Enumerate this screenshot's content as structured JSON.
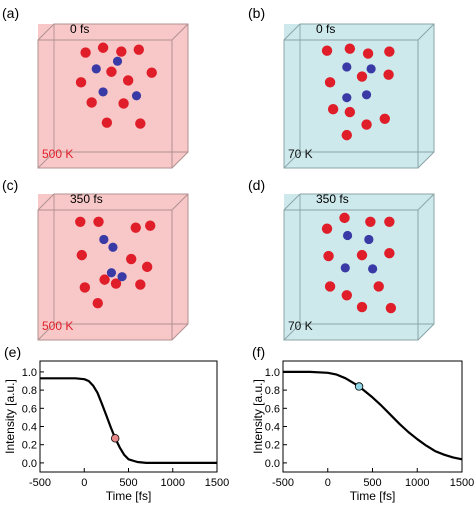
{
  "colors": {
    "warm_face": "#f8c8c8",
    "cool_face": "#cde9ec",
    "warm_edge": "#b09090",
    "cool_edge": "#8aa4a8",
    "red_atom": "#e01e2a",
    "blue_atom": "#3a3aa6",
    "warm_label": "#e0202a",
    "cool_label": "#111111",
    "marker_warm": "#e88888",
    "marker_cool": "#8fd6e6"
  },
  "panels": [
    {
      "label": "(a)",
      "time": "0 fs",
      "temperature": "500 K",
      "theme": "warm",
      "atoms": {
        "red": [
          [
            0.1,
            0.11
          ],
          [
            0.33,
            0.06
          ],
          [
            0.57,
            0.1
          ],
          [
            0.8,
            0.08
          ],
          [
            0.04,
            0.42
          ],
          [
            0.44,
            0.31
          ],
          [
            0.66,
            0.4
          ],
          [
            0.97,
            0.32
          ],
          [
            0.18,
            0.63
          ],
          [
            0.6,
            0.64
          ],
          [
            0.38,
            0.84
          ],
          [
            0.82,
            0.85
          ]
        ],
        "blue": [
          [
            0.24,
            0.28
          ],
          [
            0.52,
            0.2
          ],
          [
            0.33,
            0.52
          ],
          [
            0.77,
            0.56
          ]
        ]
      }
    },
    {
      "label": "(b)",
      "time": "0 fs",
      "temperature": "70 K",
      "theme": "cool",
      "atoms": {
        "red": [
          [
            0.04,
            0.09
          ],
          [
            0.34,
            0.07
          ],
          [
            0.58,
            0.12
          ],
          [
            0.86,
            0.1
          ],
          [
            0.08,
            0.42
          ],
          [
            0.5,
            0.36
          ],
          [
            0.85,
            0.34
          ],
          [
            0.12,
            0.7
          ],
          [
            0.34,
            0.73
          ],
          [
            0.56,
            0.86
          ],
          [
            0.8,
            0.8
          ],
          [
            0.3,
            0.97
          ]
        ],
        "blue": [
          [
            0.3,
            0.26
          ],
          [
            0.62,
            0.28
          ],
          [
            0.3,
            0.58
          ],
          [
            0.56,
            0.55
          ]
        ]
      }
    },
    {
      "label": "(c)",
      "time": "350 fs",
      "temperature": "500 K",
      "theme": "warm",
      "atoms": {
        "red": [
          [
            0.03,
            0.1
          ],
          [
            0.27,
            0.1
          ],
          [
            0.76,
            0.16
          ],
          [
            0.95,
            0.14
          ],
          [
            0.05,
            0.44
          ],
          [
            0.7,
            0.48
          ],
          [
            0.91,
            0.56
          ],
          [
            0.09,
            0.77
          ],
          [
            0.35,
            0.69
          ],
          [
            0.5,
            0.73
          ],
          [
            0.82,
            0.74
          ],
          [
            0.26,
            0.93
          ]
        ],
        "blue": [
          [
            0.34,
            0.28
          ],
          [
            0.46,
            0.36
          ],
          [
            0.44,
            0.62
          ],
          [
            0.58,
            0.66
          ]
        ]
      }
    },
    {
      "label": "(d)",
      "time": "350 fs",
      "temperature": "70 K",
      "theme": "cool",
      "atoms": {
        "red": [
          [
            0.04,
            0.17
          ],
          [
            0.27,
            0.06
          ],
          [
            0.61,
            0.1
          ],
          [
            0.86,
            0.1
          ],
          [
            0.06,
            0.45
          ],
          [
            0.5,
            0.44
          ],
          [
            0.86,
            0.42
          ],
          [
            0.08,
            0.76
          ],
          [
            0.3,
            0.85
          ],
          [
            0.72,
            0.76
          ],
          [
            0.5,
            0.97
          ],
          [
            0.88,
            0.98
          ]
        ],
        "blue": [
          [
            0.31,
            0.24
          ],
          [
            0.59,
            0.28
          ],
          [
            0.28,
            0.57
          ],
          [
            0.64,
            0.58
          ]
        ]
      }
    }
  ],
  "plots": [
    {
      "label": "(e)",
      "ylabel": "Intensity [a.u.]",
      "xlabel": "Time [fs]",
      "xlim": [
        -500,
        1500
      ],
      "ylim": [
        -0.1,
        1.12
      ],
      "xticks": [
        "-500",
        "0",
        "500",
        "1000",
        "1500"
      ],
      "xtick_values": [
        -500,
        0,
        500,
        1000,
        1500
      ],
      "yticks": [
        "0.0",
        "0.2",
        "0.4",
        "0.6",
        "0.8",
        "1.0"
      ],
      "ytick_values": [
        0,
        0.2,
        0.4,
        0.6,
        0.8,
        1.0
      ],
      "marker": {
        "x": 350,
        "y": 0.27,
        "color_key": "marker_warm"
      }
    },
    {
      "label": "(f)",
      "ylabel": "Intensity [a.u.]",
      "xlabel": "Time [fs]",
      "xlim": [
        -500,
        1500
      ],
      "ylim": [
        -0.1,
        1.12
      ],
      "xticks": [
        "-500",
        "0",
        "500",
        "1000",
        "1500"
      ],
      "xtick_values": [
        -500,
        0,
        500,
        1000,
        1500
      ],
      "yticks": [
        "0.0",
        "0.2",
        "0.4",
        "0.6",
        "0.8",
        "1.0"
      ],
      "ytick_values": [
        0,
        0.2,
        0.4,
        0.6,
        0.8,
        1.0
      ],
      "marker": {
        "x": 350,
        "y": 0.84,
        "color_key": "marker_cool"
      }
    }
  ],
  "chart_data": [
    {
      "type": "line",
      "xlabel": "Time [fs]",
      "ylabel": "Intensity [a.u.]",
      "xlim": [
        -500,
        1500
      ],
      "ylim": [
        -0.1,
        1.12
      ],
      "grid": false,
      "x": [
        -500,
        -300,
        -100,
        0,
        50,
        100,
        150,
        200,
        250,
        300,
        350,
        400,
        450,
        500,
        600,
        700,
        800,
        1000,
        1200,
        1500
      ],
      "series": [
        {
          "values": [
            0.93,
            0.93,
            0.93,
            0.92,
            0.9,
            0.85,
            0.77,
            0.65,
            0.52,
            0.39,
            0.27,
            0.17,
            0.09,
            0.04,
            0.01,
            0.0,
            0.0,
            0.0,
            0.0,
            0.0
          ]
        }
      ],
      "annotations": [
        {
          "x": 350,
          "y": 0.27
        }
      ]
    },
    {
      "type": "line",
      "xlabel": "Time [fs]",
      "ylabel": "Intensity [a.u.]",
      "xlim": [
        -500,
        1500
      ],
      "ylim": [
        -0.1,
        1.12
      ],
      "grid": false,
      "x": [
        -500,
        -200,
        0,
        100,
        200,
        300,
        350,
        400,
        500,
        600,
        700,
        800,
        900,
        1000,
        1100,
        1200,
        1300,
        1400,
        1500
      ],
      "series": [
        {
          "values": [
            1.0,
            1.0,
            0.99,
            0.97,
            0.93,
            0.87,
            0.84,
            0.8,
            0.72,
            0.63,
            0.53,
            0.43,
            0.34,
            0.26,
            0.19,
            0.13,
            0.09,
            0.06,
            0.04
          ]
        }
      ],
      "annotations": [
        {
          "x": 350,
          "y": 0.84
        }
      ]
    }
  ]
}
